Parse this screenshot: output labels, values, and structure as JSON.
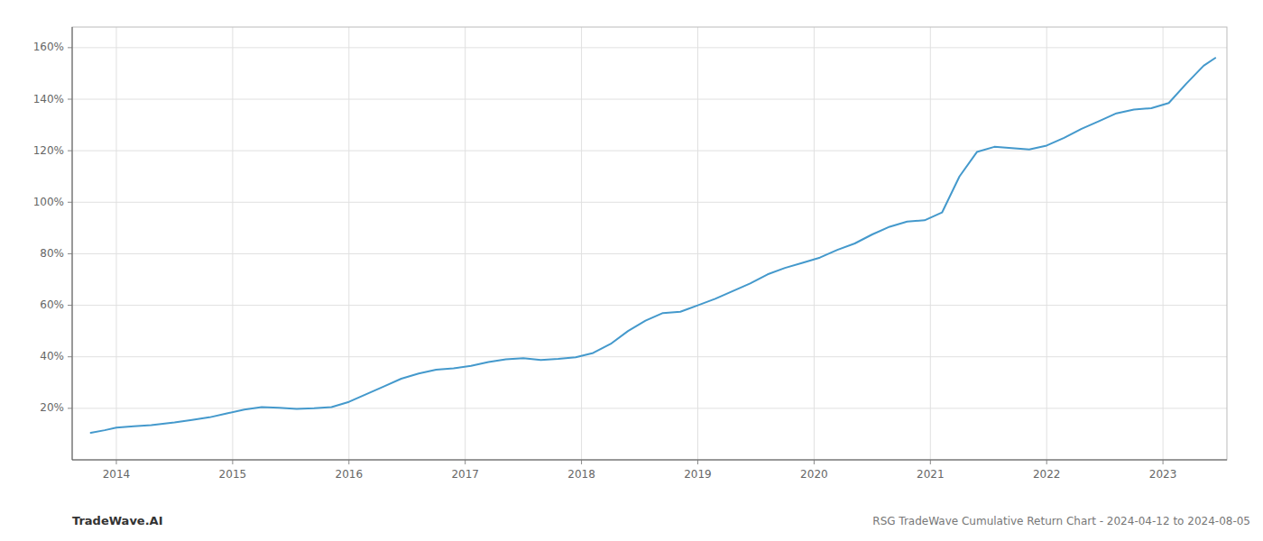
{
  "chart_data": {
    "type": "line",
    "annotations": [
      "TradeWave.AI",
      "RSG TradeWave Cumulative Return Chart - 2024-04-12 to 2024-08-05"
    ],
    "x": [
      2013.78,
      2013.9,
      2014.0,
      2014.15,
      2014.3,
      2014.5,
      2014.65,
      2014.8,
      2014.95,
      2015.1,
      2015.25,
      2015.4,
      2015.55,
      2015.7,
      2015.85,
      2016.0,
      2016.15,
      2016.3,
      2016.45,
      2016.6,
      2016.75,
      2016.9,
      2017.05,
      2017.2,
      2017.35,
      2017.5,
      2017.65,
      2017.8,
      2017.95,
      2018.1,
      2018.25,
      2018.4,
      2018.55,
      2018.7,
      2018.85,
      2019.0,
      2019.15,
      2019.3,
      2019.45,
      2019.6,
      2019.75,
      2019.9,
      2020.05,
      2020.2,
      2020.35,
      2020.5,
      2020.65,
      2020.8,
      2020.95,
      2021.1,
      2021.25,
      2021.4,
      2021.55,
      2021.7,
      2021.85,
      2022.0,
      2022.15,
      2022.3,
      2022.45,
      2022.6,
      2022.75,
      2022.9,
      2023.05,
      2023.2,
      2023.35,
      2023.45
    ],
    "values": [
      10.5,
      11.5,
      12.5,
      13.0,
      13.5,
      14.5,
      15.5,
      16.5,
      18.0,
      19.5,
      20.5,
      20.2,
      19.8,
      20.0,
      20.5,
      22.5,
      25.5,
      28.5,
      31.5,
      33.5,
      35.0,
      35.5,
      36.5,
      38.0,
      39.0,
      39.5,
      38.8,
      39.2,
      39.8,
      41.5,
      45.0,
      50.0,
      54.0,
      57.0,
      57.5,
      60.0,
      62.5,
      65.5,
      68.5,
      72.0,
      74.5,
      76.5,
      78.5,
      81.5,
      84.0,
      87.5,
      90.5,
      92.5,
      93.0,
      96.0,
      110.0,
      119.5,
      121.5,
      121.0,
      120.5,
      122.0,
      125.0,
      128.5,
      131.5,
      134.5,
      136.0,
      136.5,
      138.5,
      146.0,
      153.0,
      156.0
    ],
    "color": "#4499cc",
    "xlim": [
      2013.62,
      2023.55
    ],
    "ylim": [
      0,
      168
    ],
    "xticks": [
      2014,
      2015,
      2016,
      2017,
      2018,
      2019,
      2020,
      2021,
      2022,
      2023
    ],
    "yticks": [
      {
        "value": 20,
        "label": "20%"
      },
      {
        "value": 40,
        "label": "40%"
      },
      {
        "value": 60,
        "label": "60%"
      },
      {
        "value": 80,
        "label": "80%"
      },
      {
        "value": 100,
        "label": "100%"
      },
      {
        "value": 120,
        "label": "120%"
      },
      {
        "value": 140,
        "label": "140%"
      },
      {
        "value": 160,
        "label": "160%"
      }
    ],
    "grid": true
  }
}
